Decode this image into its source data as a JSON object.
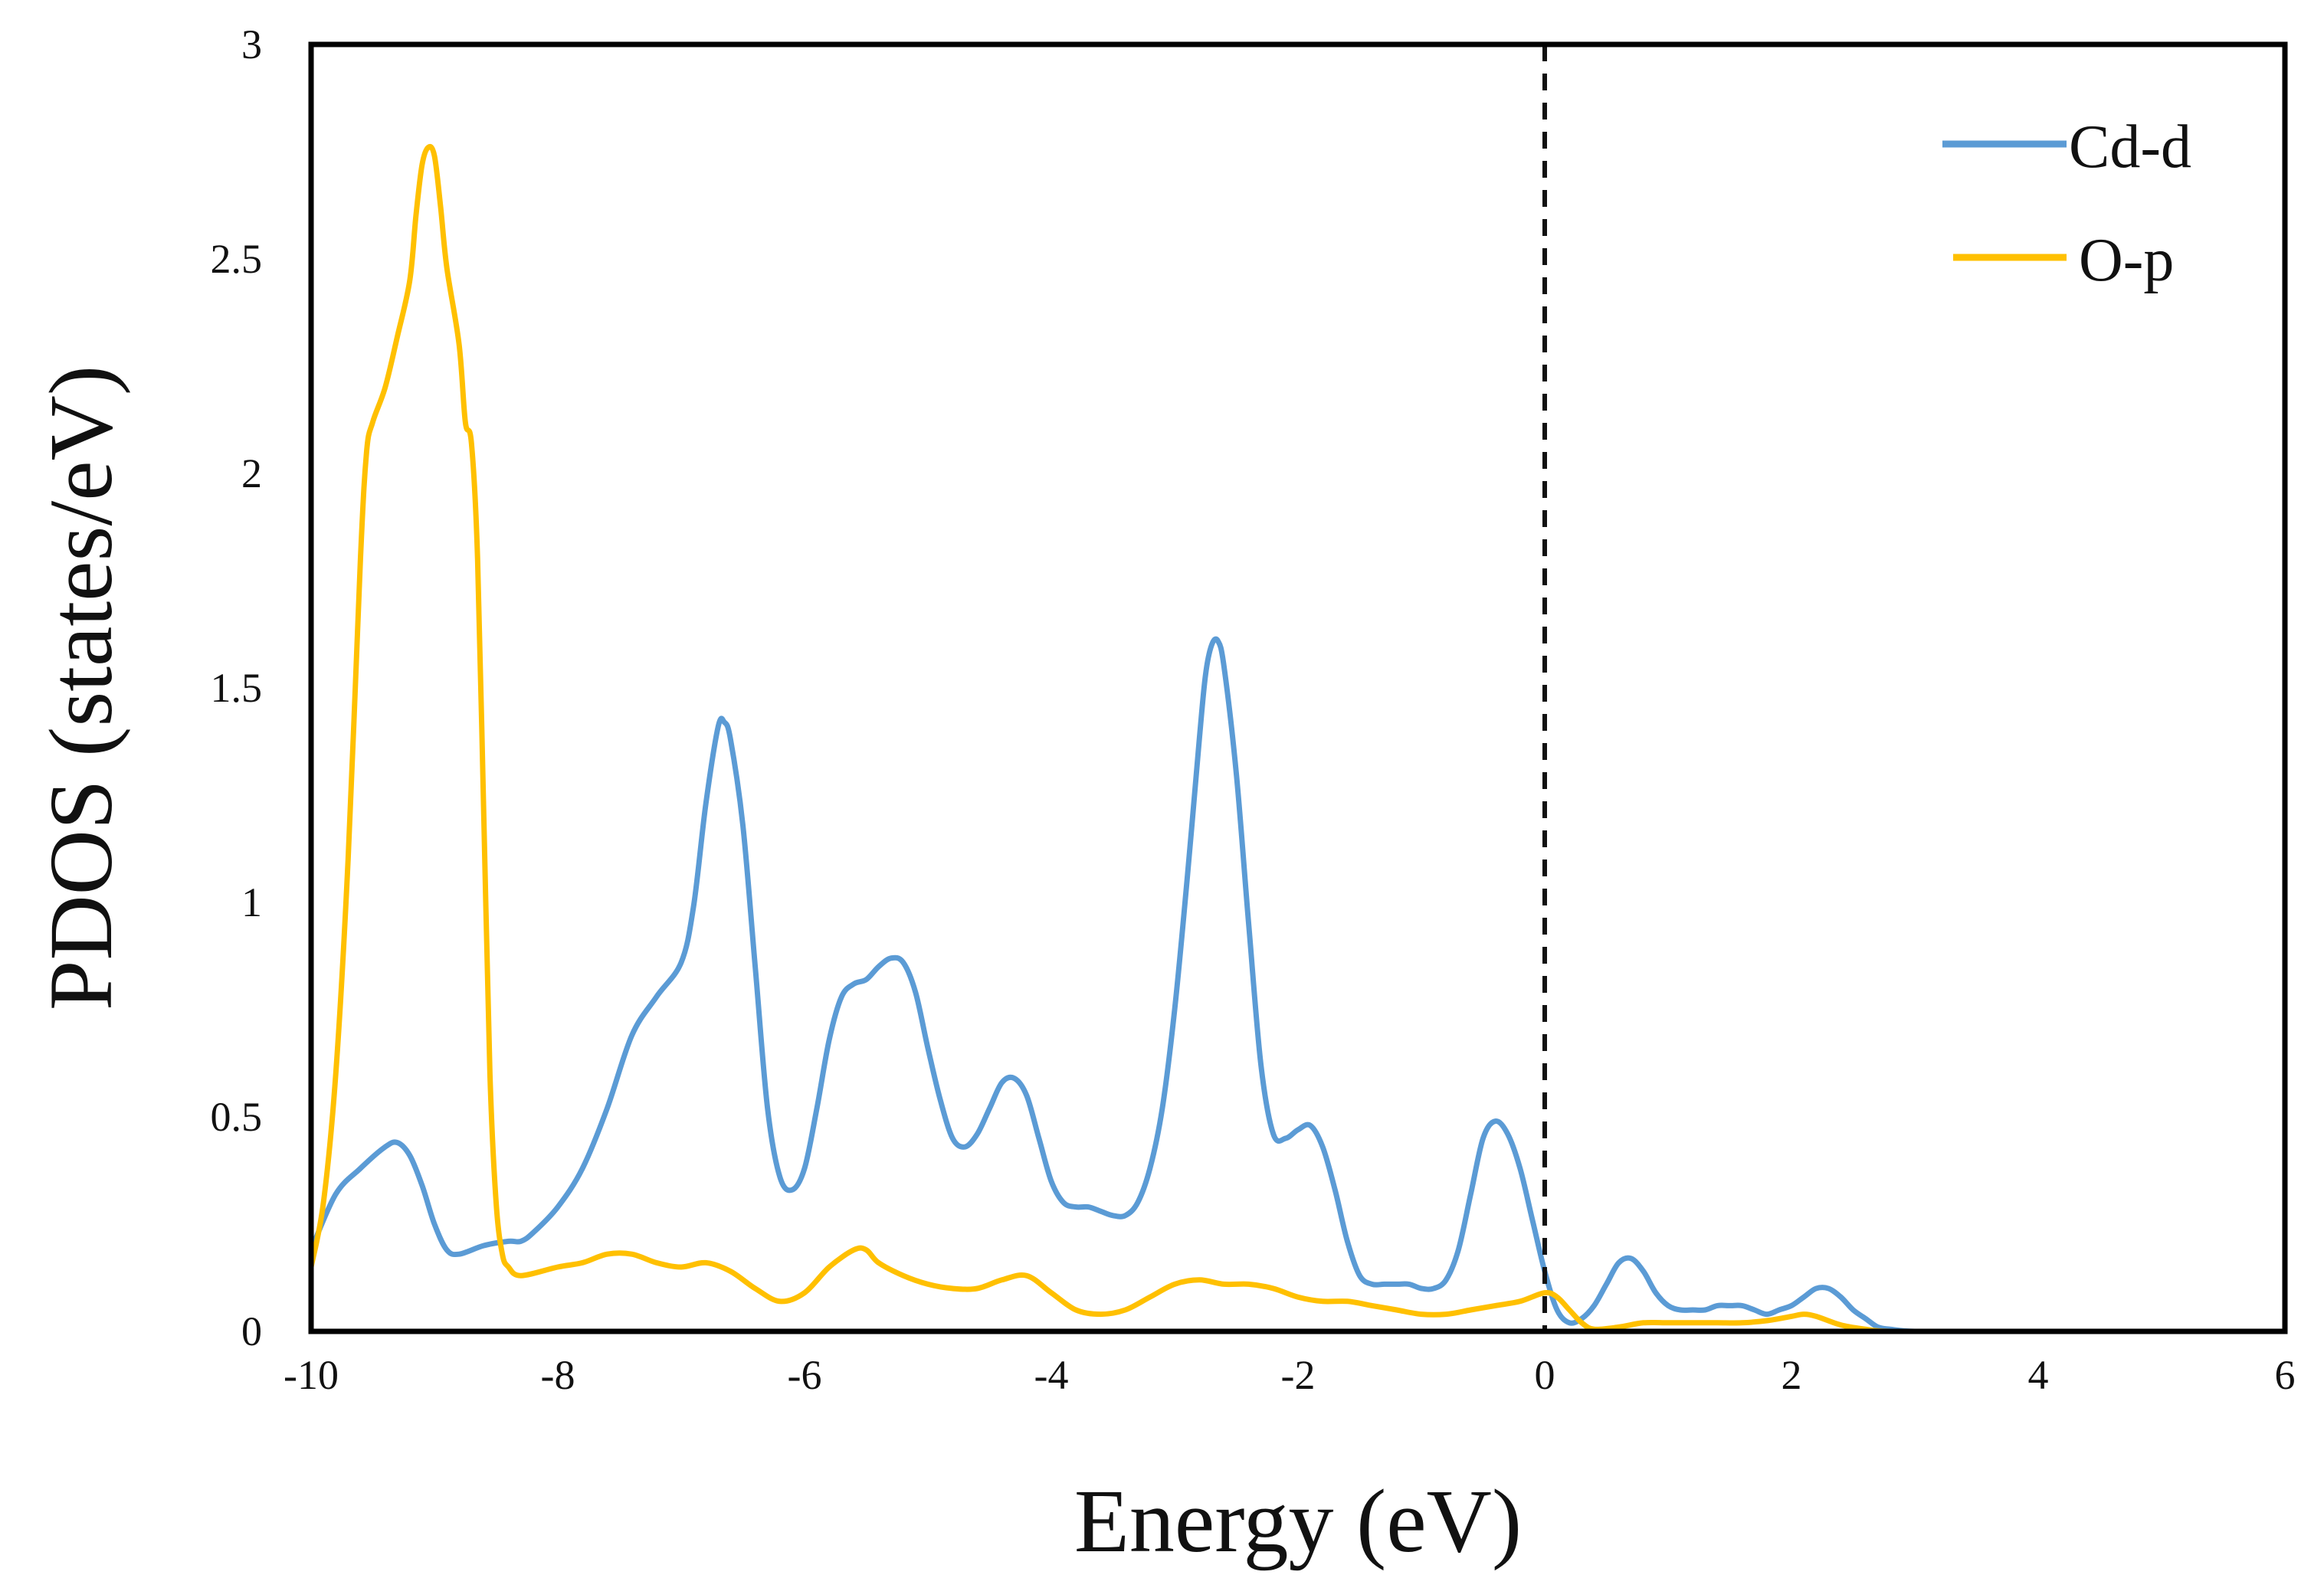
{
  "chart_data": {
    "type": "line",
    "title": "",
    "xlabel": "Energy (eV)",
    "ylabel": "PDOS (states/eV)",
    "xlim": [
      -10,
      6
    ],
    "ylim": [
      0,
      3
    ],
    "x_ticks": [
      -10,
      -8,
      -6,
      -4,
      -2,
      0,
      2,
      4,
      6
    ],
    "x_tick_labels": [
      "-10",
      "-8",
      "-6",
      "-4",
      "-2",
      "0",
      "2",
      "4",
      "6"
    ],
    "y_ticks": [
      0,
      0.5,
      1,
      1.5,
      2,
      2.5,
      3
    ],
    "y_tick_labels": [
      "0",
      "0.5",
      "1",
      "1.5",
      "2",
      "2.5",
      "3"
    ],
    "grid": false,
    "legend_position": "top-right",
    "reference_line": {
      "x": 0,
      "style": "dashed",
      "color": "#111111"
    },
    "series": [
      {
        "name": "Cd-d",
        "color": "#5B9BD5",
        "points": [
          [
            -10.0,
            0.19
          ],
          [
            -9.8,
            0.32
          ],
          [
            -9.6,
            0.38
          ],
          [
            -9.4,
            0.43
          ],
          [
            -9.3,
            0.44
          ],
          [
            -9.2,
            0.41
          ],
          [
            -9.1,
            0.34
          ],
          [
            -9.0,
            0.25
          ],
          [
            -8.9,
            0.19
          ],
          [
            -8.8,
            0.18
          ],
          [
            -8.6,
            0.2
          ],
          [
            -8.4,
            0.21
          ],
          [
            -8.3,
            0.21
          ],
          [
            -8.2,
            0.23
          ],
          [
            -8.0,
            0.29
          ],
          [
            -7.8,
            0.38
          ],
          [
            -7.6,
            0.52
          ],
          [
            -7.4,
            0.69
          ],
          [
            -7.2,
            0.78
          ],
          [
            -7.0,
            0.86
          ],
          [
            -6.9,
            0.99
          ],
          [
            -6.8,
            1.23
          ],
          [
            -6.7,
            1.41
          ],
          [
            -6.65,
            1.42
          ],
          [
            -6.6,
            1.38
          ],
          [
            -6.5,
            1.18
          ],
          [
            -6.4,
            0.85
          ],
          [
            -6.3,
            0.52
          ],
          [
            -6.2,
            0.36
          ],
          [
            -6.1,
            0.33
          ],
          [
            -6.0,
            0.38
          ],
          [
            -5.9,
            0.52
          ],
          [
            -5.8,
            0.68
          ],
          [
            -5.7,
            0.78
          ],
          [
            -5.6,
            0.81
          ],
          [
            -5.5,
            0.82
          ],
          [
            -5.4,
            0.85
          ],
          [
            -5.3,
            0.87
          ],
          [
            -5.2,
            0.86
          ],
          [
            -5.1,
            0.79
          ],
          [
            -5.0,
            0.66
          ],
          [
            -4.9,
            0.54
          ],
          [
            -4.8,
            0.45
          ],
          [
            -4.7,
            0.43
          ],
          [
            -4.6,
            0.46
          ],
          [
            -4.5,
            0.52
          ],
          [
            -4.4,
            0.58
          ],
          [
            -4.3,
            0.59
          ],
          [
            -4.2,
            0.55
          ],
          [
            -4.1,
            0.45
          ],
          [
            -4.0,
            0.35
          ],
          [
            -3.9,
            0.3
          ],
          [
            -3.8,
            0.29
          ],
          [
            -3.7,
            0.29
          ],
          [
            -3.6,
            0.28
          ],
          [
            -3.5,
            0.27
          ],
          [
            -3.4,
            0.27
          ],
          [
            -3.3,
            0.3
          ],
          [
            -3.2,
            0.38
          ],
          [
            -3.1,
            0.52
          ],
          [
            -3.0,
            0.75
          ],
          [
            -2.9,
            1.05
          ],
          [
            -2.8,
            1.38
          ],
          [
            -2.75,
            1.53
          ],
          [
            -2.7,
            1.6
          ],
          [
            -2.65,
            1.61
          ],
          [
            -2.6,
            1.55
          ],
          [
            -2.5,
            1.3
          ],
          [
            -2.4,
            0.95
          ],
          [
            -2.3,
            0.62
          ],
          [
            -2.2,
            0.46
          ],
          [
            -2.1,
            0.45
          ],
          [
            -2.0,
            0.47
          ],
          [
            -1.9,
            0.48
          ],
          [
            -1.8,
            0.43
          ],
          [
            -1.7,
            0.33
          ],
          [
            -1.6,
            0.21
          ],
          [
            -1.5,
            0.13
          ],
          [
            -1.4,
            0.11
          ],
          [
            -1.3,
            0.11
          ],
          [
            -1.2,
            0.11
          ],
          [
            -1.1,
            0.11
          ],
          [
            -1.0,
            0.1
          ],
          [
            -0.9,
            0.1
          ],
          [
            -0.8,
            0.12
          ],
          [
            -0.7,
            0.19
          ],
          [
            -0.6,
            0.32
          ],
          [
            -0.5,
            0.45
          ],
          [
            -0.4,
            0.49
          ],
          [
            -0.3,
            0.46
          ],
          [
            -0.2,
            0.38
          ],
          [
            -0.1,
            0.26
          ],
          [
            0.0,
            0.14
          ],
          [
            0.1,
            0.05
          ],
          [
            0.2,
            0.02
          ],
          [
            0.3,
            0.03
          ],
          [
            0.4,
            0.06
          ],
          [
            0.5,
            0.11
          ],
          [
            0.6,
            0.16
          ],
          [
            0.7,
            0.17
          ],
          [
            0.8,
            0.14
          ],
          [
            0.9,
            0.09
          ],
          [
            1.0,
            0.06
          ],
          [
            1.1,
            0.05
          ],
          [
            1.2,
            0.05
          ],
          [
            1.3,
            0.05
          ],
          [
            1.4,
            0.06
          ],
          [
            1.5,
            0.06
          ],
          [
            1.6,
            0.06
          ],
          [
            1.7,
            0.05
          ],
          [
            1.8,
            0.04
          ],
          [
            1.9,
            0.05
          ],
          [
            2.0,
            0.06
          ],
          [
            2.1,
            0.08
          ],
          [
            2.2,
            0.1
          ],
          [
            2.3,
            0.1
          ],
          [
            2.4,
            0.08
          ],
          [
            2.5,
            0.05
          ],
          [
            2.6,
            0.03
          ],
          [
            2.7,
            0.01
          ],
          [
            2.8,
            0.005
          ],
          [
            3.0,
            0.0
          ],
          [
            3.5,
            0.0
          ],
          [
            4.0,
            0.0
          ],
          [
            4.5,
            0.0
          ],
          [
            5.2,
            0.0
          ]
        ]
      },
      {
        "name": "O-p",
        "color": "#FFC000",
        "points": [
          [
            -10.0,
            0.15
          ],
          [
            -9.9,
            0.3
          ],
          [
            -9.8,
            0.6
          ],
          [
            -9.7,
            1.1
          ],
          [
            -9.6,
            1.8
          ],
          [
            -9.55,
            2.05
          ],
          [
            -9.5,
            2.12
          ],
          [
            -9.4,
            2.2
          ],
          [
            -9.3,
            2.32
          ],
          [
            -9.2,
            2.45
          ],
          [
            -9.15,
            2.6
          ],
          [
            -9.1,
            2.72
          ],
          [
            -9.05,
            2.76
          ],
          [
            -9.0,
            2.74
          ],
          [
            -8.95,
            2.62
          ],
          [
            -8.9,
            2.48
          ],
          [
            -8.8,
            2.3
          ],
          [
            -8.75,
            2.12
          ],
          [
            -8.7,
            2.07
          ],
          [
            -8.65,
            1.8
          ],
          [
            -8.6,
            1.2
          ],
          [
            -8.55,
            0.6
          ],
          [
            -8.5,
            0.3
          ],
          [
            -8.45,
            0.18
          ],
          [
            -8.4,
            0.15
          ],
          [
            -8.3,
            0.13
          ],
          [
            -8.0,
            0.15
          ],
          [
            -7.8,
            0.16
          ],
          [
            -7.6,
            0.18
          ],
          [
            -7.4,
            0.18
          ],
          [
            -7.2,
            0.16
          ],
          [
            -7.0,
            0.15
          ],
          [
            -6.8,
            0.16
          ],
          [
            -6.6,
            0.14
          ],
          [
            -6.4,
            0.1
          ],
          [
            -6.2,
            0.07
          ],
          [
            -6.0,
            0.09
          ],
          [
            -5.8,
            0.15
          ],
          [
            -5.6,
            0.19
          ],
          [
            -5.5,
            0.19
          ],
          [
            -5.4,
            0.16
          ],
          [
            -5.2,
            0.13
          ],
          [
            -5.0,
            0.11
          ],
          [
            -4.8,
            0.1
          ],
          [
            -4.6,
            0.1
          ],
          [
            -4.4,
            0.12
          ],
          [
            -4.2,
            0.13
          ],
          [
            -4.0,
            0.09
          ],
          [
            -3.8,
            0.05
          ],
          [
            -3.6,
            0.04
          ],
          [
            -3.4,
            0.05
          ],
          [
            -3.2,
            0.08
          ],
          [
            -3.0,
            0.11
          ],
          [
            -2.8,
            0.12
          ],
          [
            -2.6,
            0.11
          ],
          [
            -2.4,
            0.11
          ],
          [
            -2.2,
            0.1
          ],
          [
            -2.0,
            0.08
          ],
          [
            -1.8,
            0.07
          ],
          [
            -1.6,
            0.07
          ],
          [
            -1.4,
            0.06
          ],
          [
            -1.2,
            0.05
          ],
          [
            -1.0,
            0.04
          ],
          [
            -0.8,
            0.04
          ],
          [
            -0.6,
            0.05
          ],
          [
            -0.4,
            0.06
          ],
          [
            -0.2,
            0.07
          ],
          [
            0.0,
            0.09
          ],
          [
            0.1,
            0.08
          ],
          [
            0.2,
            0.05
          ],
          [
            0.3,
            0.02
          ],
          [
            0.4,
            0.005
          ],
          [
            0.6,
            0.01
          ],
          [
            0.8,
            0.02
          ],
          [
            1.0,
            0.02
          ],
          [
            1.2,
            0.02
          ],
          [
            1.4,
            0.02
          ],
          [
            1.6,
            0.02
          ],
          [
            1.8,
            0.025
          ],
          [
            2.0,
            0.035
          ],
          [
            2.1,
            0.04
          ],
          [
            2.2,
            0.035
          ],
          [
            2.4,
            0.015
          ],
          [
            2.6,
            0.005
          ],
          [
            2.8,
            0.0
          ],
          [
            3.5,
            0.0
          ],
          [
            4.5,
            0.0
          ],
          [
            5.1,
            0.0
          ]
        ]
      }
    ]
  }
}
